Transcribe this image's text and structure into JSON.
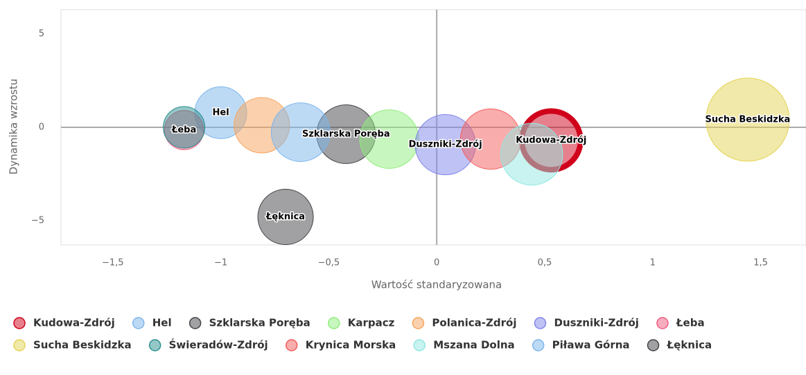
{
  "chart_data": {
    "type": "bubble",
    "x_label": "Wartość standaryzowana",
    "y_label": "Dynamika wzrostu",
    "xlim": [
      -1.74,
      1.71
    ],
    "ylim": [
      -6.3,
      6.3
    ],
    "xticks": [
      {
        "value": -1.5,
        "label": "−1,5"
      },
      {
        "value": -1,
        "label": "−1"
      },
      {
        "value": -0.5,
        "label": "−0,5"
      },
      0,
      {
        "value": 0.5,
        "label": "0,5"
      },
      1,
      {
        "value": 1.5,
        "label": "1,5"
      }
    ],
    "yticks": [
      {
        "value": -5,
        "label": "−5"
      },
      0,
      5
    ],
    "series": [
      {
        "name": "Kudowa-Zdrój",
        "color": "#d0021b",
        "x": [
          0.53
        ],
        "values": [
          -0.7
        ],
        "sizes": [
          1.8
        ],
        "data_label": true,
        "selected": true
      },
      {
        "name": "Hel",
        "color": "#7cb5ec",
        "x": [
          -1.0
        ],
        "values": [
          0.78
        ],
        "sizes": [
          1.4
        ],
        "data_label": true
      },
      {
        "name": "Szklarska Poręba",
        "color": "#434348",
        "x": [
          -0.42
        ],
        "values": [
          -0.37
        ],
        "sizes": [
          1.8
        ],
        "data_label": true
      },
      {
        "name": "Karpacz",
        "color": "#90ed7d",
        "x": [
          -0.22
        ],
        "values": [
          -0.63
        ],
        "sizes": [
          1.8
        ]
      },
      {
        "name": "Polanica-Zdrój",
        "color": "#f7a35c",
        "x": [
          -0.81
        ],
        "values": [
          0.11
        ],
        "sizes": [
          1.6
        ]
      },
      {
        "name": "Duszniki-Zdrój",
        "color": "#8085e9",
        "x": [
          0.04
        ],
        "values": [
          -0.93
        ],
        "sizes": [
          1.9
        ],
        "data_label": true
      },
      {
        "name": "Łeba",
        "color": "#f15c80",
        "x": [
          -1.17
        ],
        "values": [
          -0.15
        ],
        "sizes": [
          0.8
        ],
        "data_label": true
      },
      {
        "name": "Sucha Beskidzka",
        "color": "#e4d354",
        "x": [
          1.44
        ],
        "values": [
          0.41
        ],
        "sizes": [
          3.6
        ],
        "data_label": true
      },
      {
        "name": "Świeradów-Zdrój",
        "color": "#2b908f",
        "x": [
          -1.17
        ],
        "values": [
          0.0
        ],
        "sizes": [
          0.9
        ]
      },
      {
        "name": "Krynica Morska",
        "color": "#f45b5b",
        "x": [
          0.25
        ],
        "values": [
          -0.63
        ],
        "sizes": [
          1.9
        ]
      },
      {
        "name": "Mszana Dolna",
        "color": "#91e8e1",
        "x": [
          0.44
        ],
        "values": [
          -1.44
        ],
        "sizes": [
          2.0
        ]
      },
      {
        "name": "Piława Górna",
        "color": "#7cb5ec",
        "x": [
          -0.63
        ],
        "values": [
          -0.26
        ],
        "sizes": [
          1.8
        ]
      },
      {
        "name": "Łęknica",
        "color": "#434348",
        "x": [
          -0.7
        ],
        "values": [
          -4.8
        ],
        "sizes": [
          1.6
        ],
        "data_label": true
      }
    ]
  }
}
